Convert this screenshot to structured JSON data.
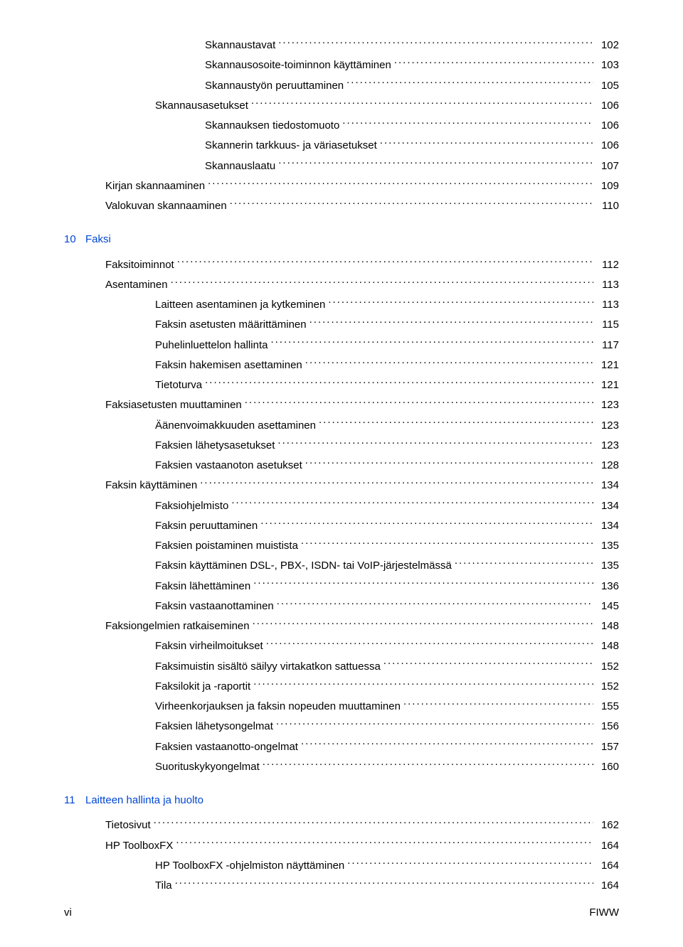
{
  "colors": {
    "heading": "#0046d5",
    "text": "#000000",
    "background": "#ffffff"
  },
  "typography": {
    "body_fontsize": 15
  },
  "toc_preamble": [
    {
      "indent": 3,
      "label": "Skannaustavat",
      "page": "102"
    },
    {
      "indent": 3,
      "label": "Skannausosoite-toiminnon käyttäminen",
      "page": "103"
    },
    {
      "indent": 3,
      "label": "Skannaustyön peruuttaminen",
      "page": "105"
    },
    {
      "indent": 2,
      "label": "Skannausasetukset",
      "page": "106"
    },
    {
      "indent": 3,
      "label": "Skannauksen tiedostomuoto",
      "page": "106"
    },
    {
      "indent": 3,
      "label": "Skannerin tarkkuus- ja väriasetukset",
      "page": "106"
    },
    {
      "indent": 3,
      "label": "Skannauslaatu",
      "page": "107"
    },
    {
      "indent": 1,
      "label": "Kirjan skannaaminen",
      "page": "109"
    },
    {
      "indent": 1,
      "label": "Valokuvan skannaaminen",
      "page": "110"
    }
  ],
  "sections": [
    {
      "num": "10",
      "title": "Faksi",
      "entries": [
        {
          "indent": 1,
          "label": "Faksitoiminnot",
          "page": "112"
        },
        {
          "indent": 1,
          "label": "Asentaminen",
          "page": "113"
        },
        {
          "indent": 2,
          "label": "Laitteen asentaminen ja kytkeminen",
          "page": "113"
        },
        {
          "indent": 2,
          "label": "Faksin asetusten määrittäminen",
          "page": "115"
        },
        {
          "indent": 2,
          "label": "Puhelinluettelon hallinta",
          "page": "117"
        },
        {
          "indent": 2,
          "label": "Faksin hakemisen asettaminen",
          "page": "121"
        },
        {
          "indent": 2,
          "label": "Tietoturva",
          "page": "121"
        },
        {
          "indent": 1,
          "label": "Faksiasetusten muuttaminen",
          "page": "123"
        },
        {
          "indent": 2,
          "label": "Äänenvoimakkuuden asettaminen",
          "page": "123"
        },
        {
          "indent": 2,
          "label": "Faksien lähetysasetukset",
          "page": "123"
        },
        {
          "indent": 2,
          "label": "Faksien vastaanoton asetukset",
          "page": "128"
        },
        {
          "indent": 1,
          "label": "Faksin käyttäminen",
          "page": "134"
        },
        {
          "indent": 2,
          "label": "Faksiohjelmisto",
          "page": "134"
        },
        {
          "indent": 2,
          "label": "Faksin peruuttaminen",
          "page": "134"
        },
        {
          "indent": 2,
          "label": "Faksien poistaminen muistista",
          "page": "135"
        },
        {
          "indent": 2,
          "label": "Faksin käyttäminen DSL-, PBX-, ISDN- tai VoIP-järjestelmässä",
          "page": "135"
        },
        {
          "indent": 2,
          "label": "Faksin lähettäminen",
          "page": "136"
        },
        {
          "indent": 2,
          "label": "Faksin vastaanottaminen",
          "page": "145"
        },
        {
          "indent": 1,
          "label": "Faksiongelmien ratkaiseminen",
          "page": "148"
        },
        {
          "indent": 2,
          "label": "Faksin virheilmoitukset",
          "page": "148"
        },
        {
          "indent": 2,
          "label": "Faksimuistin sisältö säilyy virtakatkon sattuessa",
          "page": "152"
        },
        {
          "indent": 2,
          "label": "Faksilokit ja -raportit",
          "page": "152"
        },
        {
          "indent": 2,
          "label": "Virheenkorjauksen ja faksin nopeuden muuttaminen",
          "page": "155"
        },
        {
          "indent": 2,
          "label": "Faksien lähetysongelmat",
          "page": "156"
        },
        {
          "indent": 2,
          "label": "Faksien vastaanotto-ongelmat",
          "page": "157"
        },
        {
          "indent": 2,
          "label": "Suorituskykyongelmat",
          "page": "160"
        }
      ]
    },
    {
      "num": "11",
      "title": "Laitteen hallinta ja huolto",
      "entries": [
        {
          "indent": 1,
          "label": "Tietosivut",
          "page": "162"
        },
        {
          "indent": 1,
          "label": "HP ToolboxFX",
          "page": "164"
        },
        {
          "indent": 2,
          "label": "HP ToolboxFX -ohjelmiston näyttäminen",
          "page": "164"
        },
        {
          "indent": 2,
          "label": "Tila",
          "page": "164"
        }
      ]
    }
  ],
  "footer": {
    "left": "vi",
    "right": "FIWW"
  }
}
